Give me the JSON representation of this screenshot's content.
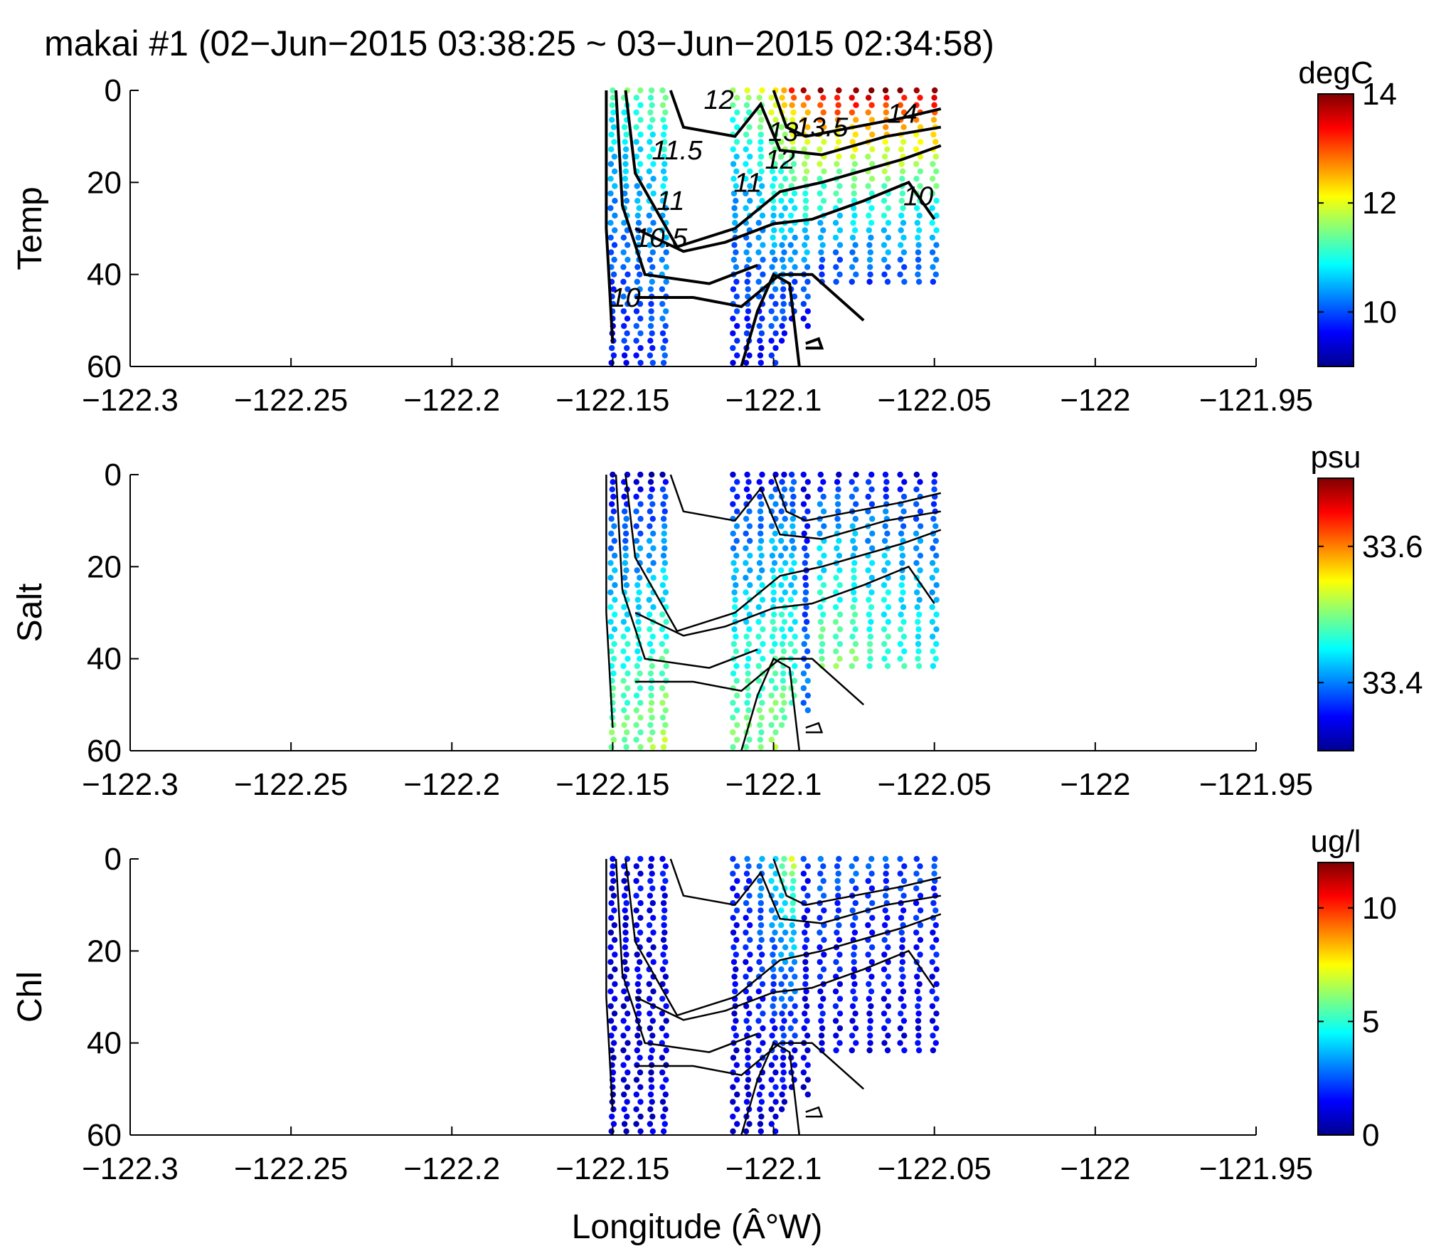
{
  "figure": {
    "title": "makai #1 (02−Jun−2015 03:38:25 ~ 03−Jun−2015 02:34:58)",
    "xlabel": "Longitude (Â°W)"
  },
  "chart_data": [
    {
      "type": "scatter",
      "ylabel": "Temp",
      "colorbar_unit": "degC",
      "colormap": "jet",
      "xlim": [
        -122.3,
        -121.95
      ],
      "ylim": [
        0,
        60
      ],
      "y_reversed": true,
      "x_ticks": [
        "−122.3",
        "−122.25",
        "−122.2",
        "−122.15",
        "−122.1",
        "−122.05",
        "−122",
        "−121.95"
      ],
      "y_ticks": [
        "0",
        "20",
        "40",
        "60"
      ],
      "clim": [
        9,
        14
      ],
      "colorbar_ticks": [
        "10",
        "12",
        "14"
      ],
      "contour_labels": [
        "12",
        "11.5",
        "11",
        "10.5",
        "10",
        "13",
        "13.5",
        "14",
        "12",
        "11",
        "10"
      ],
      "profiles": [
        {
          "x": -122.15,
          "depth": 60,
          "surface": 11.3,
          "bottom": 9.6
        },
        {
          "x": -122.146,
          "depth": 60,
          "surface": 11.4,
          "bottom": 9.7
        },
        {
          "x": -122.142,
          "depth": 60,
          "surface": 11.4,
          "bottom": 9.8
        },
        {
          "x": -122.138,
          "depth": 60,
          "surface": 11.5,
          "bottom": 9.8
        },
        {
          "x": -122.134,
          "depth": 60,
          "surface": 11.6,
          "bottom": 9.9
        },
        {
          "x": -122.112,
          "depth": 60,
          "surface": 11.6,
          "bottom": 9.6
        },
        {
          "x": -122.108,
          "depth": 60,
          "surface": 11.8,
          "bottom": 9.6
        },
        {
          "x": -122.104,
          "depth": 60,
          "surface": 12.0,
          "bottom": 9.6
        },
        {
          "x": -122.1,
          "depth": 60,
          "surface": 12.4,
          "bottom": 9.7
        },
        {
          "x": -122.097,
          "depth": 55,
          "surface": 12.7,
          "bottom": 9.7
        },
        {
          "x": -122.094,
          "depth": 50,
          "surface": 13.2,
          "bottom": 9.7
        },
        {
          "x": -122.09,
          "depth": 52,
          "surface": 13.6,
          "bottom": 9.6
        },
        {
          "x": -122.085,
          "depth": 42,
          "surface": 14.0,
          "bottom": 9.8
        },
        {
          "x": -122.08,
          "depth": 42,
          "surface": 14.0,
          "bottom": 9.8
        },
        {
          "x": -122.075,
          "depth": 42,
          "surface": 14.0,
          "bottom": 9.9
        },
        {
          "x": -122.07,
          "depth": 42,
          "surface": 14.0,
          "bottom": 9.9
        },
        {
          "x": -122.065,
          "depth": 43,
          "surface": 14.0,
          "bottom": 9.9
        },
        {
          "x": -122.06,
          "depth": 42,
          "surface": 14.0,
          "bottom": 9.9
        },
        {
          "x": -122.055,
          "depth": 42,
          "surface": 14.0,
          "bottom": 9.9
        },
        {
          "x": -122.05,
          "depth": 42,
          "surface": 14.0,
          "bottom": 9.9
        }
      ]
    },
    {
      "type": "scatter",
      "ylabel": "Salt",
      "colorbar_unit": "psu",
      "colormap": "jet",
      "xlim": [
        -122.3,
        -121.95
      ],
      "ylim": [
        0,
        60
      ],
      "y_reversed": true,
      "x_ticks": [
        "−122.3",
        "−122.25",
        "−122.2",
        "−122.15",
        "−122.1",
        "−122.05",
        "−122",
        "−121.95"
      ],
      "y_ticks": [
        "0",
        "20",
        "40",
        "60"
      ],
      "clim": [
        33.3,
        33.7
      ],
      "colorbar_ticks": [
        "33.4",
        "33.6"
      ],
      "profiles": [
        {
          "x": -122.15,
          "depth": 60,
          "surface": 33.32,
          "bottom": 33.5
        },
        {
          "x": -122.146,
          "depth": 60,
          "surface": 33.32,
          "bottom": 33.5
        },
        {
          "x": -122.142,
          "depth": 60,
          "surface": 33.32,
          "bottom": 33.5
        },
        {
          "x": -122.138,
          "depth": 60,
          "surface": 33.32,
          "bottom": 33.51
        },
        {
          "x": -122.134,
          "depth": 60,
          "surface": 33.33,
          "bottom": 33.52
        },
        {
          "x": -122.112,
          "depth": 60,
          "surface": 33.33,
          "bottom": 33.5
        },
        {
          "x": -122.108,
          "depth": 60,
          "surface": 33.33,
          "bottom": 33.5
        },
        {
          "x": -122.104,
          "depth": 60,
          "surface": 33.34,
          "bottom": 33.5
        },
        {
          "x": -122.1,
          "depth": 60,
          "surface": 33.35,
          "bottom": 33.51
        },
        {
          "x": -122.097,
          "depth": 55,
          "surface": 33.35,
          "bottom": 33.5
        },
        {
          "x": -122.094,
          "depth": 50,
          "surface": 33.36,
          "bottom": 33.48
        },
        {
          "x": -122.09,
          "depth": 52,
          "surface": 33.33,
          "bottom": 33.4
        },
        {
          "x": -122.085,
          "depth": 42,
          "surface": 33.34,
          "bottom": 33.5
        },
        {
          "x": -122.08,
          "depth": 42,
          "surface": 33.34,
          "bottom": 33.5
        },
        {
          "x": -122.075,
          "depth": 42,
          "surface": 33.34,
          "bottom": 33.5
        },
        {
          "x": -122.07,
          "depth": 42,
          "surface": 33.34,
          "bottom": 33.48
        },
        {
          "x": -122.065,
          "depth": 43,
          "surface": 33.34,
          "bottom": 33.48
        },
        {
          "x": -122.06,
          "depth": 42,
          "surface": 33.34,
          "bottom": 33.47
        },
        {
          "x": -122.055,
          "depth": 42,
          "surface": 33.34,
          "bottom": 33.46
        },
        {
          "x": -122.05,
          "depth": 42,
          "surface": 33.34,
          "bottom": 33.45
        }
      ]
    },
    {
      "type": "scatter",
      "ylabel": "Chl",
      "colorbar_unit": "ug/l",
      "colormap": "jet",
      "xlim": [
        -122.3,
        -121.95
      ],
      "ylim": [
        0,
        60
      ],
      "y_reversed": true,
      "x_ticks": [
        "−122.3",
        "−122.25",
        "−122.2",
        "−122.15",
        "−122.1",
        "−122.05",
        "−122",
        "−121.95"
      ],
      "y_ticks": [
        "0",
        "20",
        "40",
        "60"
      ],
      "clim": [
        0,
        12
      ],
      "colorbar_ticks": [
        "0",
        "5",
        "10"
      ],
      "profiles": [
        {
          "x": -122.15,
          "depth": 60,
          "surface": 1.2,
          "bottom": 1.0
        },
        {
          "x": -122.146,
          "depth": 60,
          "surface": 1.4,
          "bottom": 1.0
        },
        {
          "x": -122.142,
          "depth": 60,
          "surface": 1.5,
          "bottom": 1.0
        },
        {
          "x": -122.138,
          "depth": 60,
          "surface": 1.5,
          "bottom": 1.0
        },
        {
          "x": -122.134,
          "depth": 60,
          "surface": 1.6,
          "bottom": 1.1
        },
        {
          "x": -122.112,
          "depth": 60,
          "surface": 2.0,
          "bottom": 1.0
        },
        {
          "x": -122.108,
          "depth": 60,
          "surface": 2.5,
          "bottom": 1.0
        },
        {
          "x": -122.104,
          "depth": 60,
          "surface": 3.5,
          "bottom": 1.0
        },
        {
          "x": -122.1,
          "depth": 60,
          "surface": 4.5,
          "bottom": 1.0
        },
        {
          "x": -122.097,
          "depth": 55,
          "surface": 6.0,
          "bottom": 1.0
        },
        {
          "x": -122.094,
          "depth": 50,
          "surface": 7.0,
          "bottom": 1.0
        },
        {
          "x": -122.09,
          "depth": 52,
          "surface": 2.0,
          "bottom": 1.0
        },
        {
          "x": -122.085,
          "depth": 42,
          "surface": 3.0,
          "bottom": 1.2
        },
        {
          "x": -122.08,
          "depth": 42,
          "surface": 2.8,
          "bottom": 1.2
        },
        {
          "x": -122.075,
          "depth": 42,
          "surface": 2.8,
          "bottom": 1.2
        },
        {
          "x": -122.07,
          "depth": 42,
          "surface": 2.5,
          "bottom": 1.2
        },
        {
          "x": -122.065,
          "depth": 43,
          "surface": 2.5,
          "bottom": 1.2
        },
        {
          "x": -122.06,
          "depth": 42,
          "surface": 2.5,
          "bottom": 1.2
        },
        {
          "x": -122.055,
          "depth": 42,
          "surface": 2.5,
          "bottom": 1.2
        },
        {
          "x": -122.05,
          "depth": 42,
          "surface": 2.5,
          "bottom": 1.2
        }
      ]
    }
  ]
}
